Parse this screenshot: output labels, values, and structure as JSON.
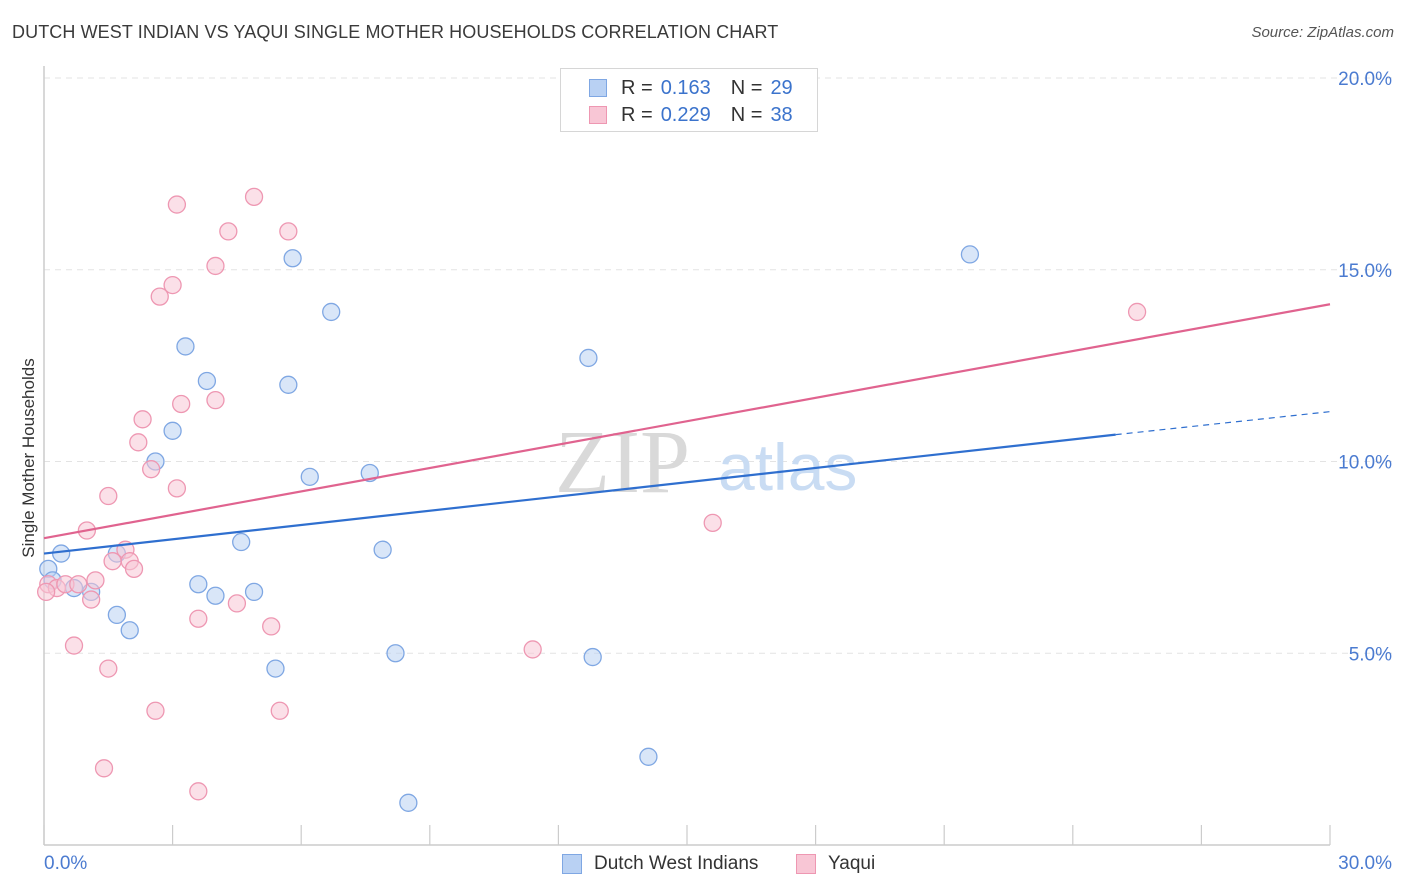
{
  "title": "DUTCH WEST INDIAN VS YAQUI SINGLE MOTHER HOUSEHOLDS CORRELATION CHART",
  "source": "Source: ZipAtlas.com",
  "watermark": {
    "zip": "ZIP",
    "atlas": "atlas"
  },
  "legend": {
    "series1": {
      "r_label": "R =",
      "r_value": "0.163",
      "n_label": "N =",
      "n_value": "29"
    },
    "series2": {
      "r_label": "R =",
      "r_value": "0.229",
      "n_label": "N =",
      "n_value": "38"
    }
  },
  "bottom_legend": {
    "series1": "Dutch West Indians",
    "series2": "Yaqui"
  },
  "colors": {
    "blue_fill": "#b9d1f3",
    "blue_stroke": "#7fa7e3",
    "blue_line": "#2f6fcf",
    "pink_fill": "#f8c6d5",
    "pink_stroke": "#ee97b2",
    "pink_line": "#e0638f",
    "grid": "#e3e3e3",
    "axis": "#cccccc",
    "tick_text": "#4b7bd0"
  },
  "chart_data": {
    "type": "scatter",
    "title": "DUTCH WEST INDIAN VS YAQUI SINGLE MOTHER HOUSEHOLDS CORRELATION CHART",
    "xlabel": "",
    "ylabel": "Single Mother Households",
    "xlim": [
      0,
      30
    ],
    "ylim": [
      0,
      20
    ],
    "x_tick_labels": [
      "0.0%",
      "30.0%"
    ],
    "y_ticks": [
      5,
      10,
      15,
      20
    ],
    "y_tick_labels": [
      "5.0%",
      "10.0%",
      "15.0%",
      "20.0%"
    ],
    "series": [
      {
        "name": "Dutch West Indians",
        "r": 0.163,
        "n": 29,
        "points": [
          [
            0.1,
            7.2
          ],
          [
            0.4,
            7.6
          ],
          [
            0.7,
            6.7
          ],
          [
            1.1,
            6.6
          ],
          [
            1.7,
            7.6
          ],
          [
            1.7,
            6.0
          ],
          [
            2.0,
            5.6
          ],
          [
            2.6,
            10.0
          ],
          [
            3.0,
            10.8
          ],
          [
            3.3,
            13.0
          ],
          [
            3.6,
            6.8
          ],
          [
            3.8,
            12.1
          ],
          [
            4.0,
            6.5
          ],
          [
            4.6,
            7.9
          ],
          [
            4.9,
            6.6
          ],
          [
            5.4,
            4.6
          ],
          [
            5.7,
            12.0
          ],
          [
            5.8,
            15.3
          ],
          [
            6.2,
            9.6
          ],
          [
            6.7,
            13.9
          ],
          [
            7.6,
            9.7
          ],
          [
            7.9,
            7.7
          ],
          [
            8.2,
            5.0
          ],
          [
            8.5,
            1.1
          ],
          [
            12.7,
            12.7
          ],
          [
            12.8,
            4.9
          ],
          [
            14.1,
            2.3
          ],
          [
            21.6,
            15.4
          ],
          [
            0.2,
            6.9
          ]
        ],
        "trend": {
          "x1": 0,
          "y1": 7.6,
          "x2": 25,
          "y2": 10.7,
          "dash_to_x": 30,
          "dash_to_y": 11.3
        }
      },
      {
        "name": "Yaqui",
        "r": 0.229,
        "n": 38,
        "points": [
          [
            0.1,
            6.8
          ],
          [
            0.3,
            6.7
          ],
          [
            0.5,
            6.8
          ],
          [
            0.7,
            5.2
          ],
          [
            0.8,
            6.8
          ],
          [
            1.0,
            8.2
          ],
          [
            1.1,
            6.4
          ],
          [
            1.2,
            6.9
          ],
          [
            1.4,
            2.0
          ],
          [
            1.5,
            4.6
          ],
          [
            1.5,
            9.1
          ],
          [
            1.9,
            7.7
          ],
          [
            2.0,
            7.4
          ],
          [
            2.1,
            7.2
          ],
          [
            2.2,
            10.5
          ],
          [
            2.3,
            11.1
          ],
          [
            2.5,
            9.8
          ],
          [
            2.6,
            3.5
          ],
          [
            2.7,
            14.3
          ],
          [
            3.0,
            14.6
          ],
          [
            3.1,
            9.3
          ],
          [
            3.1,
            16.7
          ],
          [
            3.2,
            11.5
          ],
          [
            3.6,
            1.4
          ],
          [
            3.6,
            5.9
          ],
          [
            4.0,
            11.6
          ],
          [
            4.0,
            15.1
          ],
          [
            4.3,
            16.0
          ],
          [
            4.5,
            6.3
          ],
          [
            4.9,
            16.9
          ],
          [
            5.3,
            5.7
          ],
          [
            5.5,
            3.5
          ],
          [
            5.7,
            16.0
          ],
          [
            11.4,
            5.1
          ],
          [
            15.6,
            8.4
          ],
          [
            25.5,
            13.9
          ],
          [
            0.05,
            6.6
          ],
          [
            1.6,
            7.4
          ]
        ],
        "trend": {
          "x1": 0,
          "y1": 8.0,
          "x2": 30,
          "y2": 14.1
        }
      }
    ]
  }
}
